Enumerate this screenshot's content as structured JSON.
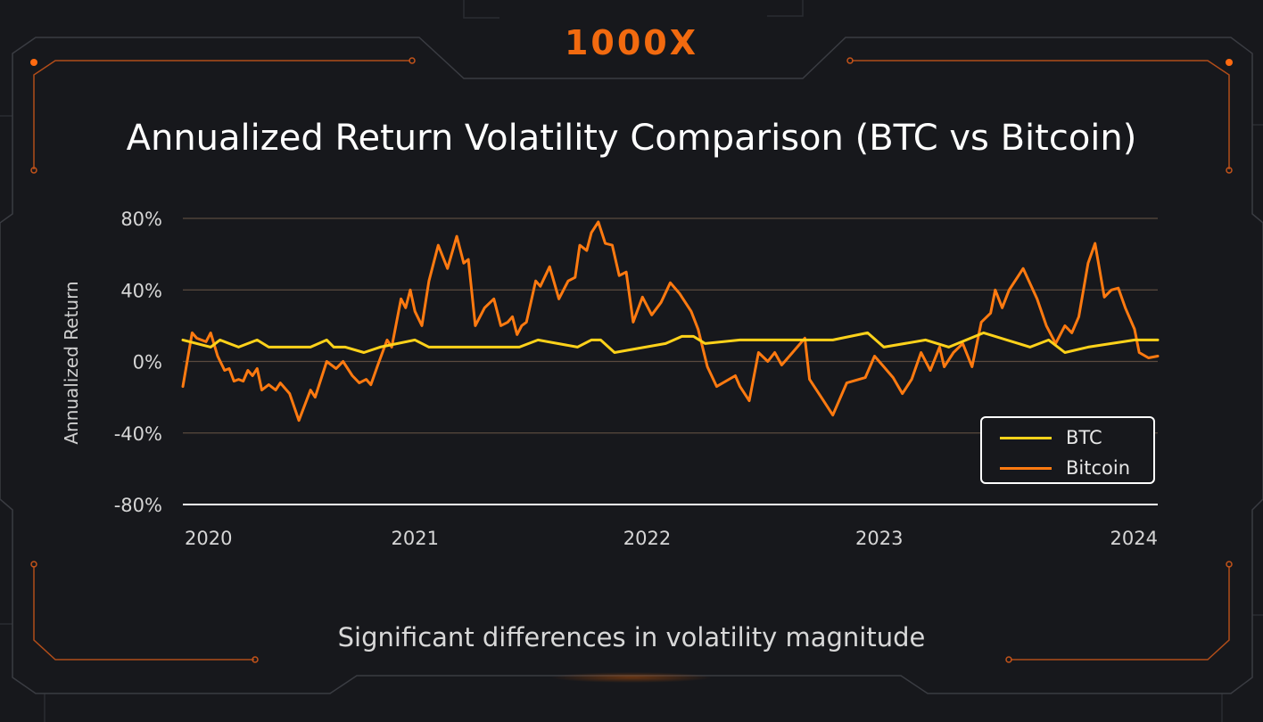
{
  "brand": {
    "logo_text": "1000X",
    "accent": "#f26a0f"
  },
  "page": {
    "title": "Annualized Return Volatility Comparison (BTC vs Bitcoin)",
    "subtitle": "Significant differences in volatility magnitude"
  },
  "chart_data": {
    "type": "line",
    "ylabel": "Annualized Return",
    "xlabel": "",
    "ylim": [
      -80,
      80
    ],
    "xlim": [
      2020.0,
      2024.2
    ],
    "grid": true,
    "legend_position": "bottom-right",
    "y_ticks": [
      {
        "value": 80,
        "label": "80%"
      },
      {
        "value": 40,
        "label": "40%"
      },
      {
        "value": 0,
        "label": "0%"
      },
      {
        "value": -40,
        "label": "-40%"
      },
      {
        "value": -80,
        "label": "-80%"
      }
    ],
    "x_ticks": [
      {
        "value": 2020,
        "label": "2020"
      },
      {
        "value": 2021,
        "label": "2021"
      },
      {
        "value": 2022,
        "label": "2022"
      },
      {
        "value": 2023,
        "label": "2023"
      },
      {
        "value": 2024,
        "label": "2024"
      }
    ],
    "series": [
      {
        "name": "BTC",
        "color": "#ffd21a",
        "points": [
          [
            2020.0,
            12
          ],
          [
            2020.12,
            8
          ],
          [
            2020.16,
            12
          ],
          [
            2020.24,
            8
          ],
          [
            2020.32,
            12
          ],
          [
            2020.37,
            8
          ],
          [
            2020.55,
            8
          ],
          [
            2020.62,
            12
          ],
          [
            2020.65,
            8
          ],
          [
            2020.7,
            8
          ],
          [
            2020.78,
            5
          ],
          [
            2020.85,
            8
          ],
          [
            2021.0,
            12
          ],
          [
            2021.06,
            8
          ],
          [
            2021.45,
            8
          ],
          [
            2021.53,
            12
          ],
          [
            2021.7,
            8
          ],
          [
            2021.76,
            12
          ],
          [
            2021.8,
            12
          ],
          [
            2021.86,
            5
          ],
          [
            2022.08,
            10
          ],
          [
            2022.15,
            14
          ],
          [
            2022.2,
            14
          ],
          [
            2022.25,
            10
          ],
          [
            2022.4,
            12
          ],
          [
            2022.6,
            12
          ],
          [
            2022.8,
            12
          ],
          [
            2022.95,
            16
          ],
          [
            2023.02,
            8
          ],
          [
            2023.2,
            12
          ],
          [
            2023.3,
            8
          ],
          [
            2023.45,
            16
          ],
          [
            2023.55,
            12
          ],
          [
            2023.65,
            8
          ],
          [
            2023.73,
            12
          ],
          [
            2023.8,
            5
          ],
          [
            2023.9,
            8
          ],
          [
            2024.0,
            10
          ],
          [
            2024.1,
            12
          ],
          [
            2024.2,
            12
          ]
        ]
      },
      {
        "name": "Bitcoin",
        "color": "#ff7a10",
        "points": [
          [
            2020.0,
            -14
          ],
          [
            2020.04,
            16
          ],
          [
            2020.06,
            13
          ],
          [
            2020.1,
            11
          ],
          [
            2020.12,
            16
          ],
          [
            2020.15,
            3
          ],
          [
            2020.18,
            -5
          ],
          [
            2020.2,
            -4
          ],
          [
            2020.22,
            -11
          ],
          [
            2020.24,
            -10
          ],
          [
            2020.26,
            -11
          ],
          [
            2020.28,
            -5
          ],
          [
            2020.3,
            -8
          ],
          [
            2020.32,
            -4
          ],
          [
            2020.34,
            -16
          ],
          [
            2020.37,
            -13
          ],
          [
            2020.4,
            -16
          ],
          [
            2020.42,
            -12
          ],
          [
            2020.46,
            -18
          ],
          [
            2020.5,
            -33
          ],
          [
            2020.55,
            -16
          ],
          [
            2020.57,
            -20
          ],
          [
            2020.62,
            0
          ],
          [
            2020.66,
            -4
          ],
          [
            2020.69,
            0
          ],
          [
            2020.73,
            -8
          ],
          [
            2020.76,
            -12
          ],
          [
            2020.79,
            -10
          ],
          [
            2020.81,
            -13
          ],
          [
            2020.84,
            -2
          ],
          [
            2020.88,
            12
          ],
          [
            2020.9,
            8
          ],
          [
            2020.94,
            35
          ],
          [
            2020.96,
            30
          ],
          [
            2020.98,
            40
          ],
          [
            2021.0,
            28
          ],
          [
            2021.03,
            20
          ],
          [
            2021.06,
            45
          ],
          [
            2021.1,
            65
          ],
          [
            2021.14,
            52
          ],
          [
            2021.18,
            70
          ],
          [
            2021.21,
            55
          ],
          [
            2021.23,
            57
          ],
          [
            2021.26,
            20
          ],
          [
            2021.3,
            30
          ],
          [
            2021.34,
            35
          ],
          [
            2021.37,
            20
          ],
          [
            2021.4,
            22
          ],
          [
            2021.42,
            25
          ],
          [
            2021.44,
            15
          ],
          [
            2021.46,
            20
          ],
          [
            2021.48,
            22
          ],
          [
            2021.52,
            45
          ],
          [
            2021.54,
            42
          ],
          [
            2021.58,
            53
          ],
          [
            2021.62,
            35
          ],
          [
            2021.66,
            45
          ],
          [
            2021.69,
            47
          ],
          [
            2021.71,
            65
          ],
          [
            2021.74,
            62
          ],
          [
            2021.76,
            72
          ],
          [
            2021.79,
            78
          ],
          [
            2021.82,
            66
          ],
          [
            2021.85,
            65
          ],
          [
            2021.88,
            48
          ],
          [
            2021.91,
            50
          ],
          [
            2021.94,
            22
          ],
          [
            2021.98,
            36
          ],
          [
            2022.02,
            26
          ],
          [
            2022.06,
            33
          ],
          [
            2022.1,
            44
          ],
          [
            2022.14,
            38
          ],
          [
            2022.19,
            28
          ],
          [
            2022.22,
            18
          ],
          [
            2022.26,
            -3
          ],
          [
            2022.3,
            -14
          ],
          [
            2022.38,
            -8
          ],
          [
            2022.4,
            -14
          ],
          [
            2022.44,
            -22
          ],
          [
            2022.48,
            5
          ],
          [
            2022.52,
            0
          ],
          [
            2022.55,
            5
          ],
          [
            2022.58,
            -2
          ],
          [
            2022.62,
            4
          ],
          [
            2022.68,
            13
          ],
          [
            2022.7,
            -10
          ],
          [
            2022.76,
            -22
          ],
          [
            2022.8,
            -30
          ],
          [
            2022.86,
            -12
          ],
          [
            2022.94,
            -9
          ],
          [
            2022.98,
            3
          ],
          [
            2023.02,
            -3
          ],
          [
            2023.06,
            -9
          ],
          [
            2023.1,
            -18
          ],
          [
            2023.14,
            -10
          ],
          [
            2023.18,
            5
          ],
          [
            2023.22,
            -5
          ],
          [
            2023.26,
            8
          ],
          [
            2023.28,
            -3
          ],
          [
            2023.32,
            5
          ],
          [
            2023.36,
            10
          ],
          [
            2023.4,
            -3
          ],
          [
            2023.44,
            22
          ],
          [
            2023.48,
            27
          ],
          [
            2023.5,
            40
          ],
          [
            2023.53,
            30
          ],
          [
            2023.56,
            40
          ],
          [
            2023.62,
            52
          ],
          [
            2023.68,
            35
          ],
          [
            2023.72,
            20
          ],
          [
            2023.76,
            10
          ],
          [
            2023.8,
            20
          ],
          [
            2023.83,
            16
          ],
          [
            2023.86,
            25
          ],
          [
            2023.9,
            55
          ],
          [
            2023.93,
            66
          ],
          [
            2023.97,
            36
          ],
          [
            2024.0,
            40
          ],
          [
            2024.03,
            41
          ],
          [
            2024.06,
            30
          ],
          [
            2024.1,
            18
          ],
          [
            2024.12,
            5
          ],
          [
            2024.16,
            2
          ],
          [
            2024.2,
            3
          ]
        ]
      }
    ]
  }
}
